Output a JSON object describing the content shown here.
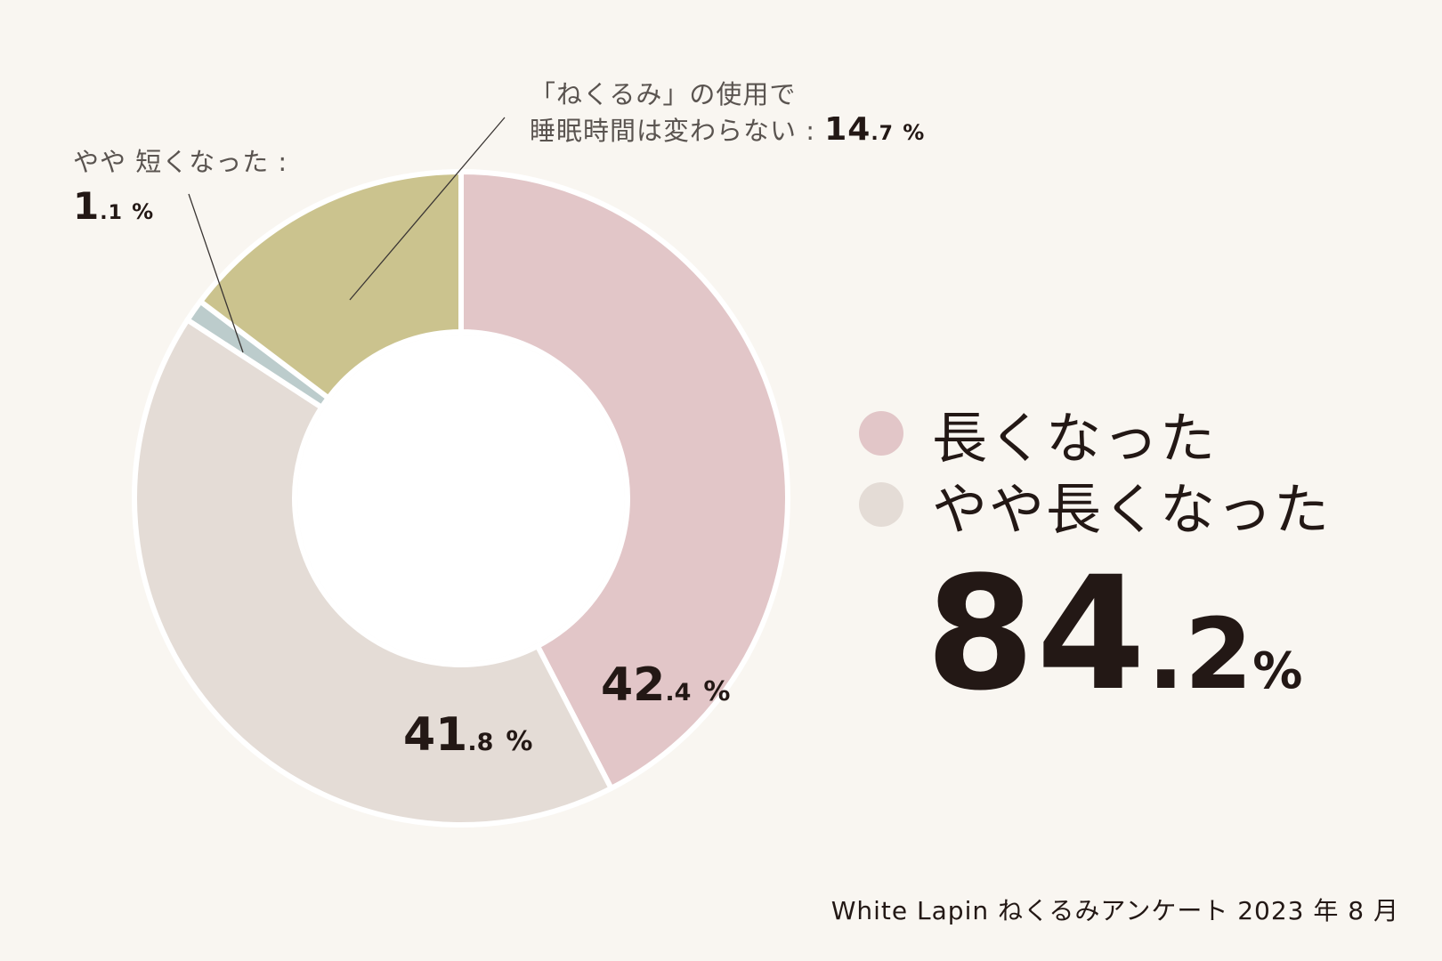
{
  "chart_data": {
    "type": "pie",
    "slices": [
      {
        "label": "長くなった",
        "value": 42.4,
        "color": "#e2c6c8"
      },
      {
        "label": "やや長くなった",
        "value": 41.8,
        "color": "#e4dcd6"
      },
      {
        "label": "やや 短くなった",
        "value": 1.1,
        "color": "#bccccc"
      },
      {
        "label": "「ねくるみ」の使用で 睡眠時間は変わらない",
        "value": 14.7,
        "color": "#cbc38e"
      }
    ],
    "title": "",
    "legend_position": "right"
  },
  "labels": {
    "long_int": "42",
    "long_dec": ".4",
    "long_pct": "%",
    "slong_int": "41",
    "slong_dec": ".8",
    "slong_pct": "%"
  },
  "annotations": {
    "short": {
      "line1": "やや 短くなった :",
      "int": "1",
      "dec": ".1",
      "pct": "%"
    },
    "same": {
      "line1": "「ねくるみ」の使用で",
      "line2": "睡眠時間は変わらない :",
      "int": "14",
      "dec": ".7",
      "pct": "%"
    }
  },
  "legend": [
    {
      "label": "長くなった",
      "color": "#e2c6c8"
    },
    {
      "label": "やや長くなった",
      "color": "#e4dcd6"
    }
  ],
  "total": {
    "int": "84",
    "dec": ".2",
    "pct": "%"
  },
  "source": "White Lapin ねくるみアンケート 2023 年 8 月"
}
